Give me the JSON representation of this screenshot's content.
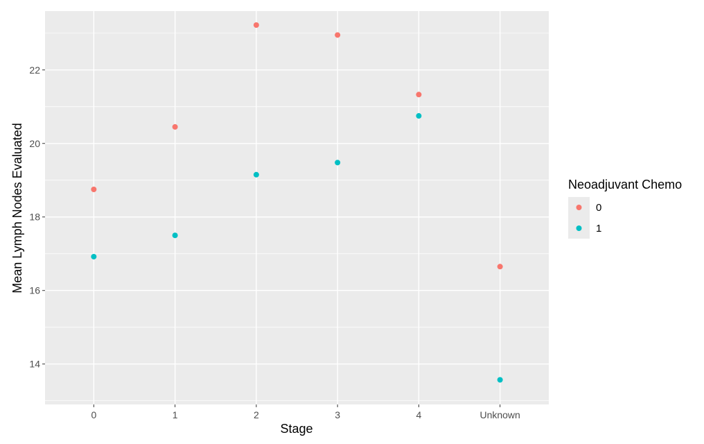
{
  "chart_data": {
    "type": "scatter",
    "title": "",
    "xlabel": "Stage",
    "ylabel": "Mean Lymph Nodes Evaluated",
    "categories": [
      "0",
      "1",
      "2",
      "3",
      "4",
      "Unknown"
    ],
    "y_ticks": [
      "14",
      "16",
      "18",
      "20",
      "22"
    ],
    "ylim": [
      12.9,
      23.6
    ],
    "grid": true,
    "legend_title": "Neoadjuvant Chemo",
    "legend_position": "right",
    "series": [
      {
        "name": "0",
        "color": "#F8766D",
        "values": [
          18.75,
          20.45,
          23.22,
          22.95,
          21.33,
          16.65
        ]
      },
      {
        "name": "1",
        "color": "#00BFC4",
        "values": [
          16.92,
          17.5,
          19.15,
          19.48,
          20.75,
          13.57
        ]
      }
    ],
    "panel_background": "#EBEBEB",
    "grid_color": "#FFFFFF"
  }
}
